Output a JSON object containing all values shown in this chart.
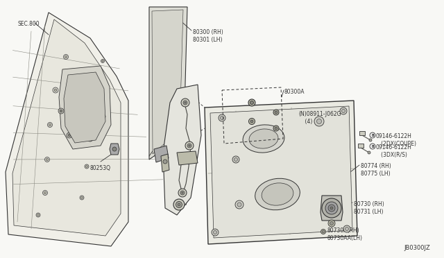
{
  "background_color": "#ffffff",
  "line_color": "#333333",
  "title_diagram_id": "JB0300JZ",
  "labels": {
    "sec800": "SEC.800",
    "part80253Q": "80253Q",
    "part80300": "80300 (RH)\n80301 (LH)",
    "part80300A": "80300A",
    "partN08911": "(N)08911-J062G\n    (4)",
    "part09146a": "(B)09146-6122H\n   (2DX(COUPE)",
    "part09146b": "(B)09146-6122H\n   (3DX(R/S)",
    "part80774": "80774 (RH)\n80775 (LH)",
    "part80730": "80730 (RH)\n80731 (LH)",
    "part80730A": "80730A(RH)\n80730AA(LH)"
  },
  "font_size": 5.5,
  "diagram_bg": "#f8f8f5"
}
